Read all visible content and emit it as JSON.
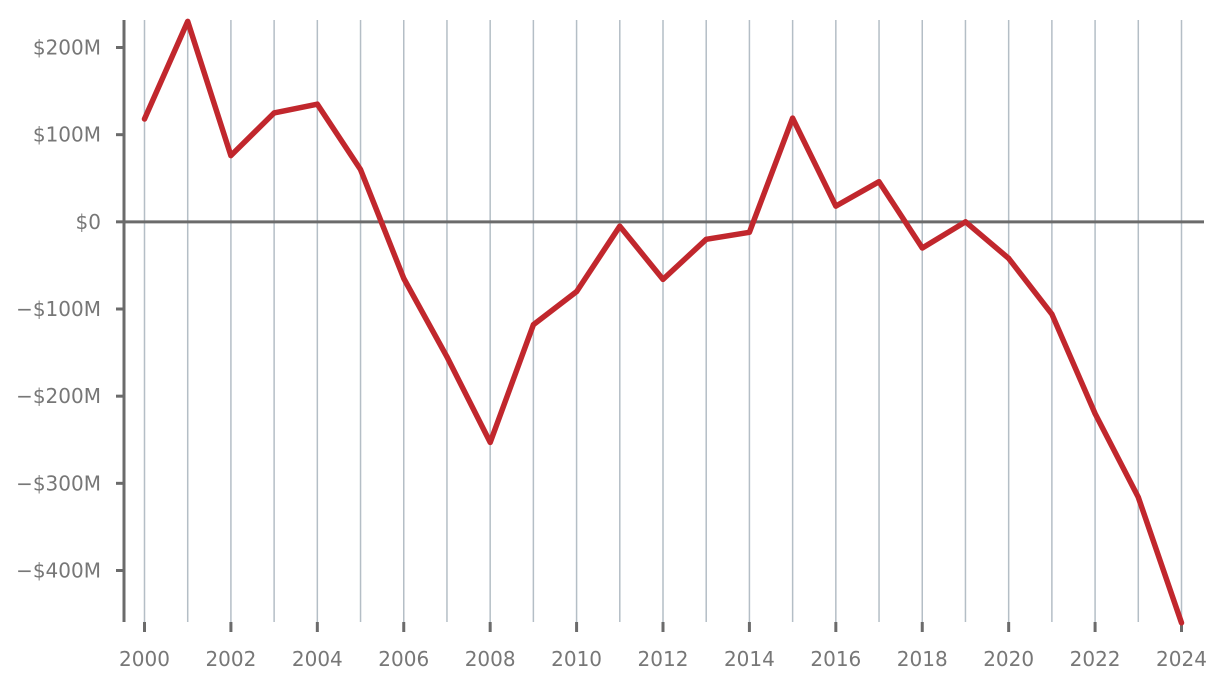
{
  "chart_data": {
    "type": "line",
    "title": "",
    "xlabel": "",
    "ylabel": "",
    "x": [
      2000,
      2001,
      2002,
      2003,
      2004,
      2005,
      2006,
      2007,
      2008,
      2009,
      2010,
      2011,
      2012,
      2013,
      2014,
      2015,
      2016,
      2017,
      2018,
      2019,
      2020,
      2021,
      2022,
      2023,
      2024
    ],
    "series": [
      {
        "values": [
          118,
          230,
          76,
          125,
          135,
          60,
          -65,
          -155,
          -253,
          -118,
          -80,
          -5,
          -66,
          -20,
          -12,
          119,
          18,
          46,
          -30,
          0,
          -42,
          -106,
          -220,
          -316,
          -460
        ]
      }
    ],
    "xlim": [
      1999.5,
      2024.5
    ],
    "ylim": [
      -460,
      232
    ],
    "x_ticks": [
      2000,
      2002,
      2004,
      2006,
      2008,
      2010,
      2012,
      2014,
      2016,
      2018,
      2020,
      2022,
      2024
    ],
    "x_tick_labels": [
      "2000",
      "2002",
      "2004",
      "2006",
      "2008",
      "2010",
      "2012",
      "2014",
      "2016",
      "2018",
      "2020",
      "2022",
      "2024"
    ],
    "y_ticks": [
      200,
      100,
      0,
      -100,
      -200,
      -300,
      -400
    ],
    "y_tick_labels": [
      "$200M",
      "$100M",
      "$0",
      "−$100M",
      "−$200M",
      "−$300M",
      "−$400M"
    ],
    "grid": {
      "vertical": true,
      "horizontal": false
    },
    "zero_line": true,
    "legend": "none",
    "colors": {
      "line": "#c1272d",
      "grid": "#b4bec6",
      "axis": "#6b6b6b",
      "zero_line": "#6b6b6b",
      "tick_label": "#777777"
    }
  }
}
